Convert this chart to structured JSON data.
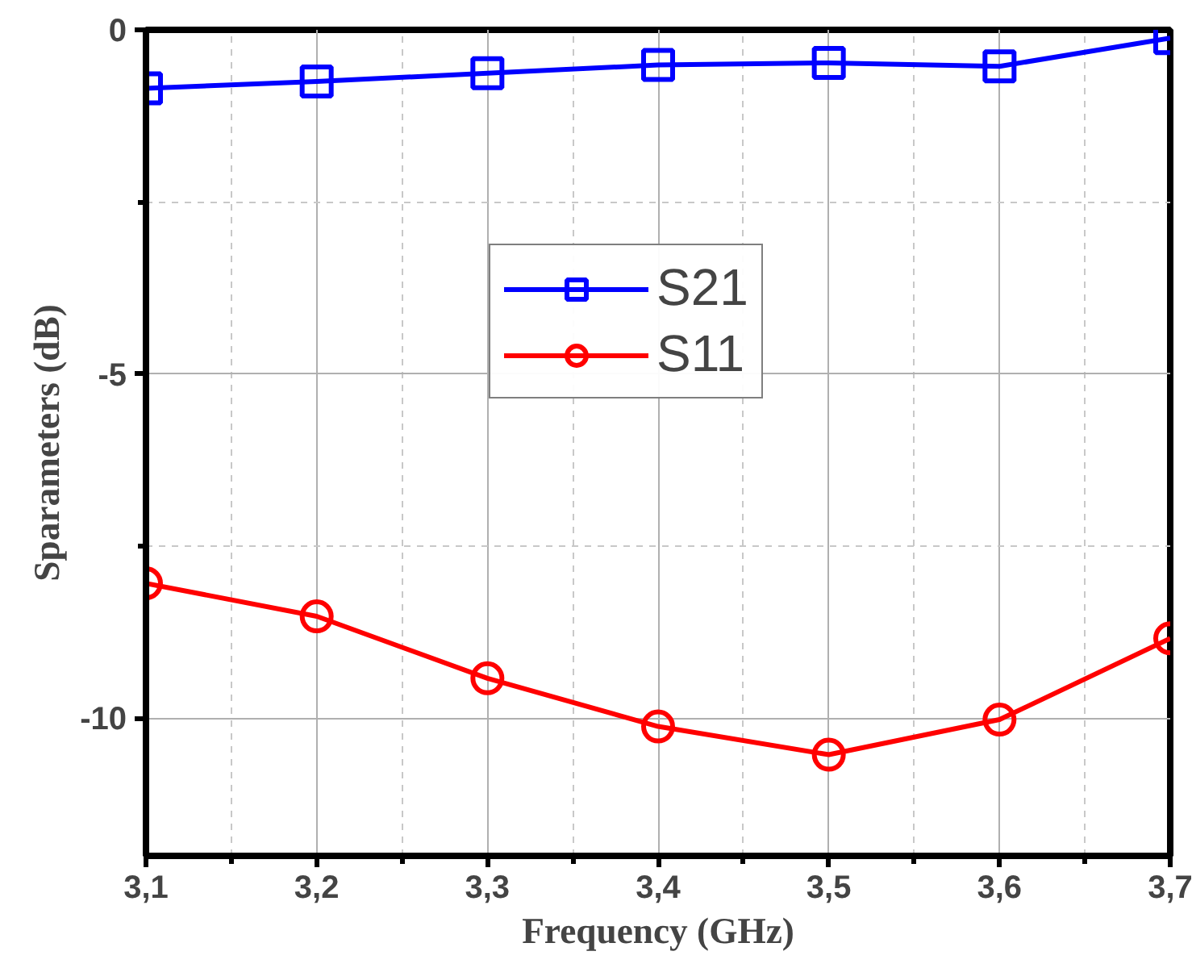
{
  "chart_data": {
    "type": "line",
    "xlabel": "Frequency (GHz)",
    "ylabel": "Sparameters (dB)",
    "x": [
      3.1,
      3.2,
      3.3,
      3.4,
      3.5,
      3.6,
      3.7
    ],
    "series": [
      {
        "name": "S21",
        "color": "#0000ff",
        "marker": "square",
        "values": [
          -0.85,
          -0.75,
          -0.63,
          -0.51,
          -0.48,
          -0.53,
          -0.12
        ]
      },
      {
        "name": "S11",
        "color": "#ff0000",
        "marker": "circle",
        "values": [
          -8.04,
          -8.52,
          -9.42,
          -10.12,
          -10.53,
          -10.02,
          -8.84
        ]
      }
    ],
    "xlim": [
      3.1,
      3.7
    ],
    "ylim": [
      -12,
      0
    ],
    "xticks": [
      {
        "value": 3.1,
        "label": "3,1"
      },
      {
        "value": 3.15,
        "label": null
      },
      {
        "value": 3.2,
        "label": "3,2"
      },
      {
        "value": 3.25,
        "label": null
      },
      {
        "value": 3.3,
        "label": "3,3"
      },
      {
        "value": 3.35,
        "label": null
      },
      {
        "value": 3.4,
        "label": "3,4"
      },
      {
        "value": 3.45,
        "label": null
      },
      {
        "value": 3.5,
        "label": "3,5"
      },
      {
        "value": 3.55,
        "label": null
      },
      {
        "value": 3.6,
        "label": "3,6"
      },
      {
        "value": 3.65,
        "label": null
      },
      {
        "value": 3.7,
        "label": "3,7"
      }
    ],
    "yticks": [
      0,
      {
        "value": -2.5,
        "label": null
      },
      -5,
      {
        "value": -7.5,
        "label": null
      },
      -10
    ],
    "grid": true,
    "legend": "top",
    "line_style": "solid"
  }
}
